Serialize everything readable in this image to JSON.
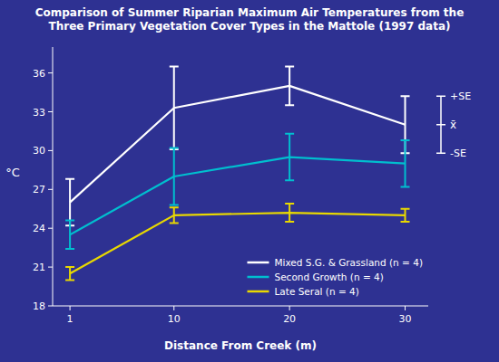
{
  "chart_data": {
    "type": "line",
    "title": "Comparison of Summer Riparian Maximum Air Temperatures from the\nThree Primary Vegetation Cover Types in the Mattole (1997 data)",
    "x_label": "Distance From Creek (m)",
    "y_label": "°C",
    "x": [
      1,
      10,
      20,
      30
    ],
    "xlim": [
      -0.5,
      32
    ],
    "xticks": [
      1,
      10,
      20,
      30
    ],
    "ylim": [
      18,
      38
    ],
    "yticks": [
      18,
      21,
      24,
      27,
      30,
      33,
      36
    ],
    "grid": false,
    "legend": "lower right",
    "series": [
      {
        "name": "Mixed S.G. & Grassland (n = 4)",
        "color": "#ffffff",
        "values": [
          26.0,
          33.3,
          35.0,
          32.0
        ],
        "errors": [
          1.8,
          3.2,
          1.5,
          2.2
        ]
      },
      {
        "name": "Second Growth (n = 4)",
        "color": "#00bfcf",
        "values": [
          23.5,
          28.0,
          29.5,
          29.0
        ],
        "errors": [
          1.1,
          2.2,
          1.8,
          1.8
        ]
      },
      {
        "name": "Late Seral (n = 4)",
        "color": "#e8d800",
        "values": [
          20.5,
          25.0,
          25.2,
          25.0
        ],
        "errors": [
          0.5,
          0.6,
          0.7,
          0.5
        ]
      }
    ],
    "annotations": [
      "+SE",
      "x̄",
      "-SE"
    ]
  }
}
